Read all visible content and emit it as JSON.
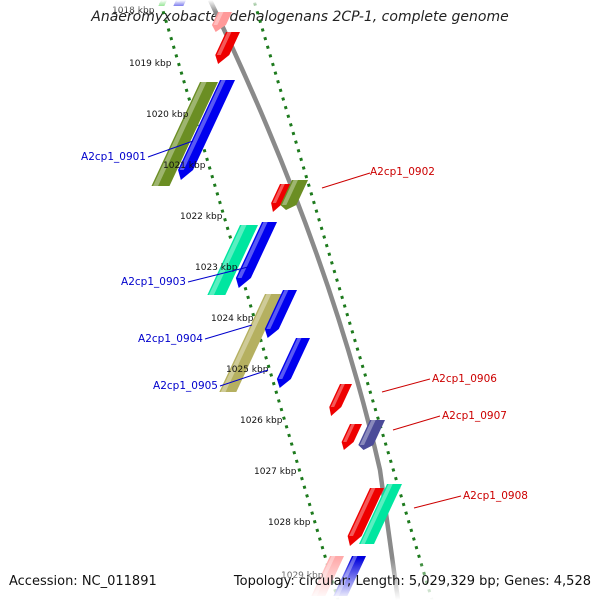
{
  "title": "Anaeromyxobacter dehalogenans 2CP-1, complete genome",
  "accession_text": "Accession: NC_011891",
  "topology_text": "Topology: circular; Length: 5,029,329 bp; Genes: 4,528",
  "colors": {
    "backbone": "#8a8a8a",
    "tick": "#1d7a1d",
    "label_forward": "#cc0000",
    "label_reverse": "#0000cc"
  },
  "ticks": [
    "1018 kbp",
    "1019 kbp",
    "1020 kbp",
    "1021 kbp",
    "1022 kbp",
    "1023 kbp",
    "1024 kbp",
    "1025 kbp",
    "1026 kbp",
    "1027 kbp",
    "1028 kbp",
    "1029 kbp"
  ],
  "gene_labels": [
    {
      "id": "A2cp1_0901",
      "strand": "reverse"
    },
    {
      "id": "A2cp1_0902",
      "strand": "forward"
    },
    {
      "id": "A2cp1_0903",
      "strand": "reverse"
    },
    {
      "id": "A2cp1_0904",
      "strand": "reverse"
    },
    {
      "id": "A2cp1_0905",
      "strand": "reverse"
    },
    {
      "id": "A2cp1_0906",
      "strand": "forward"
    },
    {
      "id": "A2cp1_0907",
      "strand": "forward"
    },
    {
      "id": "A2cp1_0908",
      "strand": "forward"
    }
  ],
  "genes": [
    {
      "name": "gene-top-green",
      "color": "#33cc33"
    },
    {
      "name": "gene-top-blue",
      "color": "#0000dd"
    },
    {
      "name": "gene-top-pink",
      "color": "#ff9999"
    },
    {
      "name": "gene-top-red",
      "color": "#ee0000"
    },
    {
      "name": "gene-0901-olive",
      "color": "#6b8e23"
    },
    {
      "name": "gene-0901-blue",
      "color": "#0000ee"
    },
    {
      "name": "gene-0902-red",
      "color": "#ee0000"
    },
    {
      "name": "gene-0902-olive",
      "color": "#6b8e23"
    },
    {
      "name": "gene-0903-teal",
      "color": "#00e6a0"
    },
    {
      "name": "gene-0903-blue",
      "color": "#0000ee"
    },
    {
      "name": "gene-0904-khaki",
      "color": "#b5b060"
    },
    {
      "name": "gene-0904-blue",
      "color": "#0000ee"
    },
    {
      "name": "gene-0905-blue",
      "color": "#0000ee"
    },
    {
      "name": "gene-0906-red",
      "color": "#ee0000"
    },
    {
      "name": "gene-0907-red",
      "color": "#ee0000"
    },
    {
      "name": "gene-0907-slate",
      "color": "#4b4b99"
    },
    {
      "name": "gene-0908-red",
      "color": "#ee0000"
    },
    {
      "name": "gene-0908-teal",
      "color": "#00e6a0"
    },
    {
      "name": "gene-bottom-pink",
      "color": "#ffaaaa"
    },
    {
      "name": "gene-bottom-blue",
      "color": "#0000dd"
    }
  ]
}
